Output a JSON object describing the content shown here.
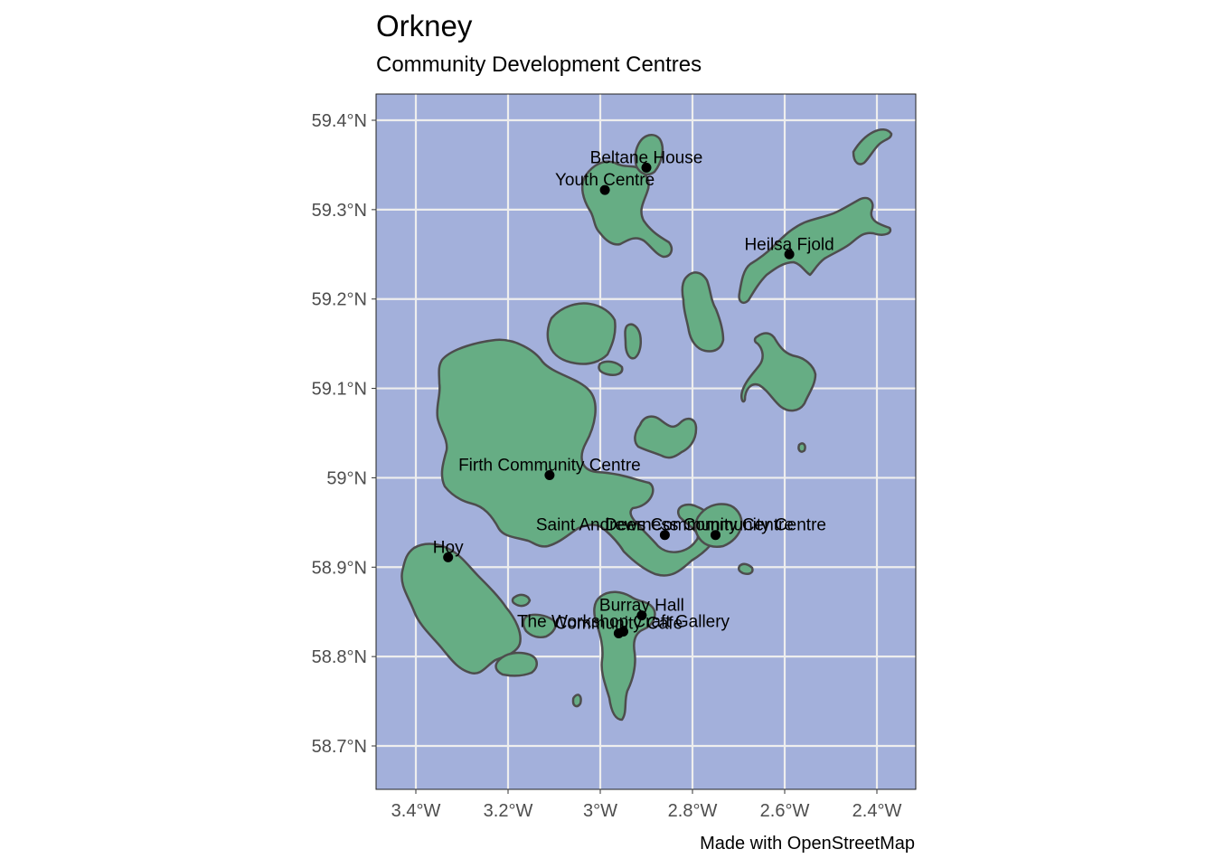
{
  "title": "Orkney",
  "subtitle": "Community Development Centres",
  "caption": "Made with OpenStreetMap",
  "colors": {
    "sea": "#a3b0db",
    "land": "#66ad84",
    "coast": "#4d4d4d",
    "grid": "#eeeeee",
    "point": "#000000"
  },
  "axes": {
    "lon_range": [
      -3.49,
      -3.29
    ],
    "lat_range": [
      58.65,
      59.43
    ],
    "x_ticks": [
      {
        "value": -3.4,
        "label": "3.4°W"
      },
      {
        "value": -3.2,
        "label": "3.2°W"
      },
      {
        "value": -3.0,
        "label": "3°W"
      },
      {
        "value": -2.8,
        "label": "2.8°W"
      },
      {
        "value": -2.6,
        "label": "2.6°W"
      },
      {
        "value": -2.4,
        "label": "2.4°W"
      }
    ],
    "y_ticks": [
      {
        "value": 58.7,
        "label": "58.7°N"
      },
      {
        "value": 58.8,
        "label": "58.8°N"
      },
      {
        "value": 58.9,
        "label": "58.9°N"
      },
      {
        "value": 59.0,
        "label": "59°N"
      },
      {
        "value": 59.1,
        "label": "59.1°N"
      },
      {
        "value": 59.2,
        "label": "59.2°N"
      },
      {
        "value": 59.3,
        "label": "59.3°N"
      },
      {
        "value": 59.4,
        "label": "59.4°N"
      }
    ]
  },
  "points": [
    {
      "name": "Beltane House",
      "lon": -2.9,
      "lat": 59.347
    },
    {
      "name": "Youth Centre",
      "lon": -2.99,
      "lat": 59.322
    },
    {
      "name": "Heilsa Fjold",
      "lon": -2.59,
      "lat": 59.25
    },
    {
      "name": "Firth Community Centre",
      "lon": -3.11,
      "lat": 59.003
    },
    {
      "name": "Saint Andrews Community Centre",
      "lon": -2.86,
      "lat": 58.936
    },
    {
      "name": "Deerness Community Centre",
      "lon": -2.75,
      "lat": 58.936
    },
    {
      "name": "Hoy",
      "lon": -3.33,
      "lat": 58.911
    },
    {
      "name": "Burray Hall",
      "lon": -2.91,
      "lat": 58.846
    },
    {
      "name": "The Workshop Craft Gallery",
      "lon": -2.95,
      "lat": 58.828
    },
    {
      "name": "Community Cafe",
      "lon": -2.96,
      "lat": 58.826
    }
  ]
}
